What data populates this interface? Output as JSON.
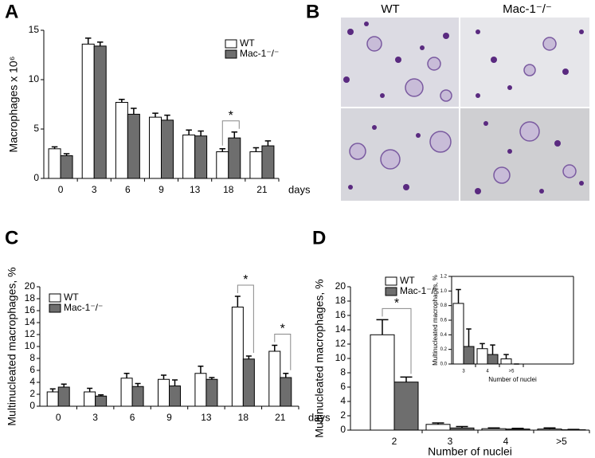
{
  "panel_labels": [
    "A",
    "B",
    "C",
    "D"
  ],
  "micrographs": {
    "columns": [
      "WT",
      "Mac-1⁻/⁻"
    ]
  },
  "chart_data": [
    {
      "type": "bar",
      "ylabel": "Macrophages x 10⁶",
      "xlabel": "days",
      "categories": [
        "0",
        "3",
        "6",
        "9",
        "13",
        "18",
        "21"
      ],
      "series": [
        {
          "name": "WT",
          "color": "#ffffff",
          "values": [
            3.0,
            13.6,
            7.7,
            6.2,
            4.4,
            2.7,
            2.7
          ],
          "errors": [
            0.2,
            0.6,
            0.3,
            0.4,
            0.5,
            0.3,
            0.4
          ]
        },
        {
          "name": "Mac-1⁻/⁻",
          "color": "#6e6e6e",
          "values": [
            2.3,
            13.4,
            6.5,
            5.9,
            4.3,
            4.1,
            3.3
          ],
          "errors": [
            0.2,
            0.4,
            0.6,
            0.5,
            0.5,
            0.6,
            0.5
          ]
        }
      ],
      "ylim": [
        0,
        15
      ],
      "yticks": [
        0,
        5,
        10,
        15
      ],
      "annotations": [
        "*"
      ]
    },
    {
      "type": "bar",
      "ylabel": "Multinucleated macrophages, %",
      "xlabel": "days",
      "categories": [
        "0",
        "3",
        "6",
        "9",
        "13",
        "18",
        "21"
      ],
      "series": [
        {
          "name": "WT",
          "color": "#ffffff",
          "values": [
            2.4,
            2.4,
            4.7,
            4.5,
            5.5,
            16.6,
            9.2
          ],
          "errors": [
            0.5,
            0.6,
            0.8,
            0.7,
            1.2,
            1.8,
            1.0
          ]
        },
        {
          "name": "Mac-1⁻/⁻",
          "color": "#6e6e6e",
          "values": [
            3.2,
            1.7,
            3.3,
            3.4,
            4.5,
            7.9,
            4.8
          ],
          "errors": [
            0.5,
            0.2,
            0.5,
            1.0,
            0.3,
            0.5,
            0.7
          ]
        }
      ],
      "ylim": [
        0,
        20
      ],
      "yticks": [
        0,
        2,
        4,
        6,
        8,
        10,
        12,
        14,
        16,
        18,
        20
      ],
      "annotations": [
        "*",
        "*"
      ]
    },
    {
      "type": "bar",
      "ylabel": "Multinucleated macrophages, %",
      "xlabel": "Number of nuclei",
      "categories": [
        "2",
        "3",
        "4",
        ">5"
      ],
      "series": [
        {
          "name": "WT",
          "color": "#ffffff",
          "values": [
            13.3,
            0.8,
            0.2,
            0.15
          ],
          "errors": [
            2.1,
            0.2,
            0.1,
            0.15
          ]
        },
        {
          "name": "Mac-1⁻/⁻",
          "color": "#6e6e6e",
          "values": [
            6.7,
            0.3,
            0.15,
            0.05
          ],
          "errors": [
            0.7,
            0.2,
            0.1,
            0.05
          ]
        }
      ],
      "ylim": [
        0,
        20
      ],
      "yticks": [
        0,
        2,
        4,
        6,
        8,
        10,
        12,
        14,
        16,
        18,
        20
      ],
      "annotations": [
        "*"
      ]
    },
    {
      "type": "bar",
      "ylabel": "Multinucleated macrophages, %",
      "xlabel": "Number of nuclei",
      "categories": [
        "3",
        "4",
        ">5"
      ],
      "series": [
        {
          "name": "WT",
          "color": "#ffffff",
          "values": [
            0.83,
            0.21,
            0.07
          ],
          "errors": [
            0.19,
            0.07,
            0.06
          ]
        },
        {
          "name": "Mac-1⁻/⁻",
          "color": "#6e6e6e",
          "values": [
            0.24,
            0.13,
            0
          ],
          "errors": [
            0.24,
            0.13,
            0
          ]
        }
      ],
      "ylim": [
        0,
        1.2
      ],
      "yticks": [
        {
          "value": 0,
          "label": "0.0"
        },
        0.2,
        0.4,
        0.6,
        0.8,
        {
          "value": 1,
          "label": "1.0"
        },
        {
          "value": 1.2,
          "label": "1.2"
        }
      ]
    }
  ]
}
